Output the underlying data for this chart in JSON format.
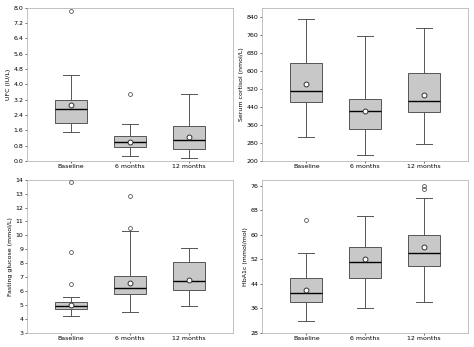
{
  "subplots": [
    {
      "ylabel": "UFC (IU/L)",
      "categories": [
        "Baseline",
        "6 months",
        "12 months"
      ],
      "ylim": [
        0.0,
        8.0
      ],
      "yticks": [
        0.0,
        0.8,
        1.6,
        2.4,
        3.2,
        4.0,
        4.8,
        5.6,
        6.4,
        7.2,
        8.0
      ],
      "yticklabels": [
        "0.0",
        "0.8",
        "1.6",
        "2.4",
        "3.2",
        "4.0",
        "4.8",
        "5.6",
        "6.4",
        "7.2",
        "8.0"
      ],
      "boxes": [
        {
          "q1": 2.0,
          "median": 2.7,
          "q3": 3.2,
          "whislo": 1.5,
          "whishi": 4.5,
          "mean": 2.9,
          "fliers": [
            7.8
          ]
        },
        {
          "q1": 0.7,
          "median": 1.0,
          "q3": 1.3,
          "whislo": 0.25,
          "whishi": 1.9,
          "mean": 1.0,
          "fliers": [
            3.5
          ]
        },
        {
          "q1": 0.6,
          "median": 1.1,
          "q3": 1.8,
          "whislo": 0.15,
          "whishi": 3.5,
          "mean": 1.25,
          "fliers": []
        }
      ]
    },
    {
      "ylabel": "Serum cortisol (nmol/L)",
      "categories": [
        "Baseline",
        "6 months",
        "12 months"
      ],
      "ylim": [
        200,
        880
      ],
      "yticks": [
        200,
        280,
        360,
        440,
        520,
        600,
        680,
        760,
        840
      ],
      "yticklabels": [
        "200",
        "280",
        "360",
        "440",
        "520",
        "600",
        "680",
        "760",
        "840"
      ],
      "boxes": [
        {
          "q1": 460,
          "median": 510,
          "q3": 635,
          "whislo": 305,
          "whishi": 830,
          "mean": 540,
          "fliers": []
        },
        {
          "q1": 340,
          "median": 420,
          "q3": 475,
          "whislo": 225,
          "whishi": 755,
          "mean": 420,
          "fliers": []
        },
        {
          "q1": 415,
          "median": 465,
          "q3": 590,
          "whislo": 275,
          "whishi": 790,
          "mean": 490,
          "fliers": []
        }
      ]
    },
    {
      "ylabel": "Fasting glucose (mmol/L)",
      "categories": [
        "Baseline",
        "6 months",
        "12 months"
      ],
      "ylim": [
        3.0,
        14.0
      ],
      "yticks": [
        3,
        4,
        5,
        6,
        7,
        8,
        9,
        10,
        11,
        12,
        13,
        14
      ],
      "yticklabels": [
        "3",
        "4",
        "5",
        "6",
        "7",
        "8",
        "9",
        "10",
        "11",
        "12",
        "13",
        "14"
      ],
      "boxes": [
        {
          "q1": 4.7,
          "median": 4.9,
          "q3": 5.2,
          "whislo": 4.2,
          "whishi": 5.6,
          "mean": 5.0,
          "fliers": [
            6.5,
            8.8,
            13.8
          ]
        },
        {
          "q1": 5.8,
          "median": 6.2,
          "q3": 7.1,
          "whislo": 4.5,
          "whishi": 10.3,
          "mean": 6.6,
          "fliers": [
            10.5,
            12.8
          ]
        },
        {
          "q1": 6.1,
          "median": 6.7,
          "q3": 8.1,
          "whislo": 4.9,
          "whishi": 9.1,
          "mean": 6.8,
          "fliers": []
        }
      ]
    },
    {
      "ylabel": "HbA1c (mmol/mol)",
      "categories": [
        "Baseline",
        "6 months",
        "12 months"
      ],
      "ylim": [
        28,
        78
      ],
      "yticks": [
        28,
        36,
        44,
        52,
        60,
        68,
        76
      ],
      "yticklabels": [
        "28",
        "36",
        "44",
        "52",
        "60",
        "68",
        "76"
      ],
      "boxes": [
        {
          "q1": 38,
          "median": 41,
          "q3": 46,
          "whislo": 32,
          "whishi": 54,
          "mean": 42,
          "fliers": [
            65
          ]
        },
        {
          "q1": 46,
          "median": 51,
          "q3": 56,
          "whislo": 36,
          "whishi": 66,
          "mean": 52,
          "fliers": []
        },
        {
          "q1": 50,
          "median": 54,
          "q3": 60,
          "whislo": 38,
          "whishi": 72,
          "mean": 56,
          "fliers": [
            75,
            76
          ]
        }
      ]
    }
  ],
  "box_color": "#c8c8c8",
  "box_edge_color": "#555555",
  "median_color": "#000000",
  "whisker_color": "#555555",
  "mean_marker_facecolor": "#ffffff",
  "mean_marker_edgecolor": "#333333",
  "flier_edgecolor": "#555555",
  "background_color": "#ffffff",
  "spine_color": "#aaaaaa"
}
